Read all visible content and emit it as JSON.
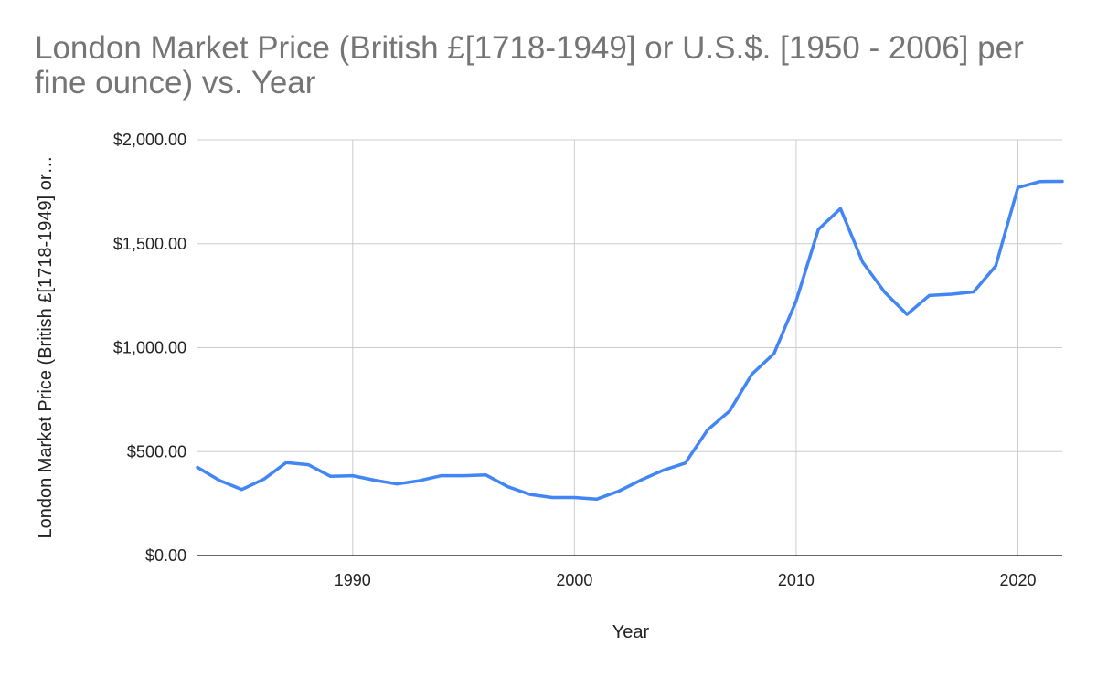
{
  "chart_data": {
    "type": "line",
    "title": "London Market Price (British £[1718-1949] or U.S.$. [1950 - 2006] per fine ounce) vs. Year",
    "xlabel": "Year",
    "ylabel": "London Market Price (British £[1718-1949] or…",
    "xlim": [
      1983,
      2022
    ],
    "ylim": [
      0,
      2000
    ],
    "x_ticks": [
      1990,
      2000,
      2010,
      2020
    ],
    "y_ticks": [
      {
        "value": 0,
        "label": "$0.00"
      },
      {
        "value": 500,
        "label": "$500.00"
      },
      {
        "value": 1000,
        "label": "$1,000.00"
      },
      {
        "value": 1500,
        "label": "$1,500.00"
      },
      {
        "value": 2000,
        "label": "$2,000.00"
      }
    ],
    "grid": true,
    "legend": "none",
    "series": [
      {
        "color": "#4285f4",
        "x": [
          1983,
          1984,
          1985,
          1986,
          1987,
          1988,
          1989,
          1990,
          1991,
          1992,
          1993,
          1994,
          1995,
          1996,
          1997,
          1998,
          1999,
          2000,
          2001,
          2002,
          2003,
          2004,
          2005,
          2006,
          2007,
          2008,
          2009,
          2010,
          2011,
          2012,
          2013,
          2014,
          2015,
          2016,
          2017,
          2018,
          2019,
          2020,
          2021,
          2022
        ],
        "values": [
          424,
          361,
          318,
          368,
          447,
          437,
          381,
          384,
          362,
          344,
          360,
          384,
          384,
          388,
          331,
          294,
          279,
          279,
          271,
          310,
          363,
          410,
          445,
          604,
          696,
          872,
          972,
          1225,
          1569,
          1669,
          1411,
          1266,
          1160,
          1251,
          1257,
          1268,
          1393,
          1770,
          1799,
          1800
        ]
      }
    ]
  }
}
